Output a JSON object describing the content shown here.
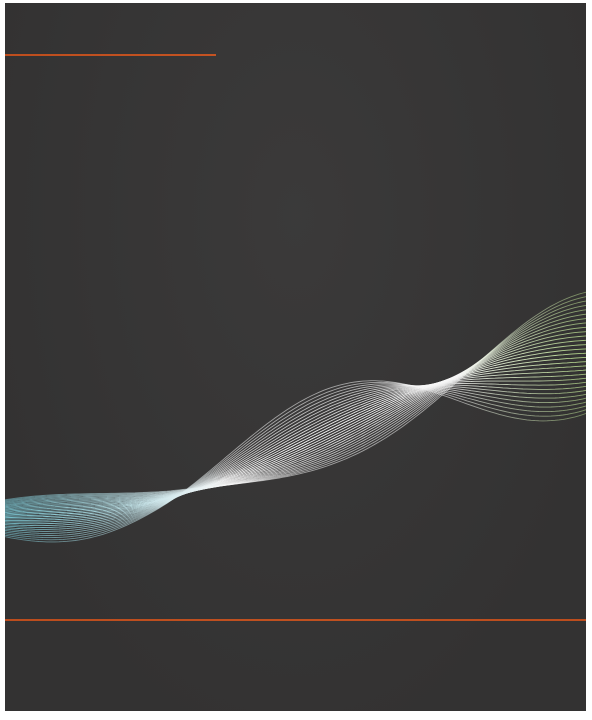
{
  "poster": {
    "background_color": "#363535",
    "accent_color": "#c8521f",
    "wave": {
      "gradient_colors": [
        "#7fd2e0",
        "#ffffff",
        "#ffffff",
        "#b9df8c"
      ],
      "line_count": 30
    }
  }
}
